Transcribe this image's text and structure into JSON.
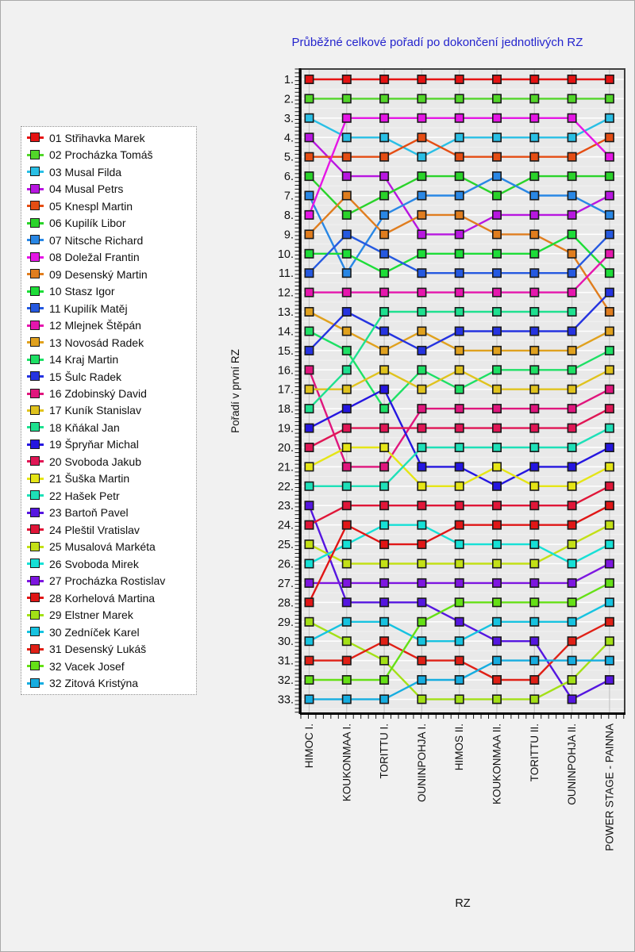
{
  "title": "Průběžné celkové pořadí po dokončení jednotlivých RZ",
  "chart_data": {
    "type": "line",
    "title": "Průběžné celkové pořadí po dokončení jednotlivých RZ",
    "xlabel": "RZ",
    "ylabel": "Pořadí v první RZ",
    "categories": [
      "HIMOC I.",
      "KOUKONMAA I.",
      "TORITTU I.",
      "OUNINPOHJA I.",
      "HIMOS II.",
      "KOUKONMAA II.",
      "TORITTU II.",
      "OUNINPOHJA II.",
      "POWER STAGE  - PAINNA"
    ],
    "y_tick_labels": [
      "1.",
      "2.",
      "3.",
      "4.",
      "5.",
      "6.",
      "7.",
      "8.",
      "9.",
      "10.",
      "11.",
      "12.",
      "13.",
      "14.",
      "15.",
      "16.",
      "17.",
      "18.",
      "19.",
      "20.",
      "21.",
      "22.",
      "23.",
      "24.",
      "25.",
      "26.",
      "27.",
      "28.",
      "29.",
      "30.",
      "31.",
      "32.",
      "33."
    ],
    "ylim": [
      1,
      33
    ],
    "y_inverted": true,
    "grid": true,
    "legend_position": "left",
    "title_color": "#2424cd",
    "series": [
      {
        "number": "01",
        "name": "Střihavka Marek",
        "color": "#e51313",
        "positions": [
          1,
          1,
          1,
          1,
          1,
          1,
          1,
          1,
          1
        ]
      },
      {
        "number": "02",
        "name": "Procházka Tomáš",
        "color": "#52d629",
        "positions": [
          2,
          2,
          2,
          2,
          2,
          2,
          2,
          2,
          2
        ]
      },
      {
        "number": "03",
        "name": "Musal Filda",
        "color": "#29bfe5",
        "positions": [
          3,
          4,
          4,
          5,
          4,
          4,
          4,
          4,
          3
        ]
      },
      {
        "number": "04",
        "name": "Musal Petrs",
        "color": "#b816e0",
        "positions": [
          4,
          6,
          6,
          9,
          9,
          8,
          8,
          8,
          7
        ]
      },
      {
        "number": "05",
        "name": "Knespl Martin",
        "color": "#e54d13",
        "positions": [
          5,
          5,
          5,
          4,
          5,
          5,
          5,
          5,
          4
        ]
      },
      {
        "number": "06",
        "name": "Kupilík Libor",
        "color": "#2ad32a",
        "positions": [
          6,
          8,
          7,
          6,
          6,
          7,
          6,
          6,
          6
        ]
      },
      {
        "number": "07",
        "name": "Nitsche Richard",
        "color": "#2987e5",
        "positions": [
          7,
          11,
          8,
          7,
          7,
          6,
          7,
          7,
          8
        ]
      },
      {
        "number": "08",
        "name": "Doležal Frantin",
        "color": "#e516e5",
        "positions": [
          8,
          3,
          3,
          3,
          3,
          3,
          3,
          3,
          5
        ]
      },
      {
        "number": "09",
        "name": "Desenský Martin",
        "color": "#e07d1e",
        "positions": [
          9,
          7,
          9,
          8,
          8,
          9,
          9,
          10,
          13
        ]
      },
      {
        "number": "10",
        "name": "Stasz Igor",
        "color": "#1ddd38",
        "positions": [
          10,
          10,
          11,
          10,
          10,
          10,
          10,
          9,
          11
        ]
      },
      {
        "number": "11",
        "name": "Kupilík Matěj",
        "color": "#2559e0",
        "positions": [
          11,
          9,
          10,
          11,
          11,
          11,
          11,
          11,
          9
        ]
      },
      {
        "number": "12",
        "name": "Mlejnek Štěpán",
        "color": "#e516ad",
        "positions": [
          12,
          12,
          12,
          12,
          12,
          12,
          12,
          12,
          10
        ]
      },
      {
        "number": "13",
        "name": "Novosád Radek",
        "color": "#e0a11e",
        "positions": [
          13,
          14,
          15,
          14,
          15,
          15,
          15,
          15,
          14
        ]
      },
      {
        "number": "14",
        "name": "Kraj Martin",
        "color": "#1ee065",
        "positions": [
          14,
          15,
          18,
          16,
          17,
          16,
          16,
          16,
          15
        ]
      },
      {
        "number": "15",
        "name": "Šulc Radek",
        "color": "#2533e0",
        "positions": [
          15,
          13,
          14,
          15,
          14,
          14,
          14,
          14,
          12
        ]
      },
      {
        "number": "16",
        "name": "Zdobinský David",
        "color": "#e0167d",
        "positions": [
          16,
          21,
          21,
          18,
          18,
          18,
          18,
          18,
          17
        ]
      },
      {
        "number": "17",
        "name": "Kuník Stanislav",
        "color": "#e0c31e",
        "positions": [
          17,
          17,
          16,
          17,
          16,
          17,
          17,
          17,
          16
        ]
      },
      {
        "number": "18",
        "name": "Kňákal Jan",
        "color": "#1ee08f",
        "positions": [
          18,
          16,
          13,
          13,
          13,
          13,
          13,
          13,
          null
        ]
      },
      {
        "number": "19",
        "name": "Špryňar Michal",
        "color": "#2516e0",
        "positions": [
          19,
          18,
          17,
          21,
          21,
          22,
          21,
          21,
          20
        ]
      },
      {
        "number": "20",
        "name": "Svoboda Jakub",
        "color": "#e01655",
        "positions": [
          20,
          19,
          19,
          19,
          19,
          19,
          19,
          19,
          18
        ]
      },
      {
        "number": "21",
        "name": "Šuška Martin",
        "color": "#e5e516",
        "positions": [
          21,
          20,
          20,
          22,
          22,
          21,
          22,
          22,
          21
        ]
      },
      {
        "number": "22",
        "name": "Hašek Petr",
        "color": "#1ee0b8",
        "positions": [
          22,
          22,
          22,
          20,
          20,
          20,
          20,
          20,
          19
        ]
      },
      {
        "number": "23",
        "name": "Bartoň Pavel",
        "color": "#5516e0",
        "positions": [
          23,
          28,
          28,
          28,
          29,
          30,
          30,
          33,
          32
        ]
      },
      {
        "number": "24",
        "name": "Pleštil Vratislav",
        "color": "#e01638",
        "positions": [
          24,
          23,
          23,
          23,
          23,
          23,
          23,
          23,
          22
        ]
      },
      {
        "number": "25",
        "name": "Musalová Markéta",
        "color": "#c3e016",
        "positions": [
          25,
          26,
          26,
          26,
          26,
          26,
          26,
          25,
          24
        ]
      },
      {
        "number": "26",
        "name": "Svoboda Mirek",
        "color": "#16e0d6",
        "positions": [
          26,
          25,
          24,
          24,
          25,
          25,
          25,
          26,
          25
        ]
      },
      {
        "number": "27",
        "name": "Procházka Rostislav",
        "color": "#7d16e0",
        "positions": [
          27,
          27,
          27,
          27,
          27,
          27,
          27,
          27,
          26
        ]
      },
      {
        "number": "28",
        "name": "Korhelová Martina",
        "color": "#e01616",
        "positions": [
          28,
          24,
          25,
          25,
          24,
          24,
          24,
          24,
          23
        ]
      },
      {
        "number": "29",
        "name": "Elstner Marek",
        "color": "#a3e016",
        "positions": [
          29,
          30,
          31,
          33,
          33,
          33,
          33,
          32,
          30
        ]
      },
      {
        "number": "30",
        "name": "Zedníček Karel",
        "color": "#16c3e0",
        "positions": [
          30,
          29,
          29,
          30,
          30,
          29,
          29,
          29,
          28
        ]
      },
      {
        "number": "31",
        "name": "Desenský Lukáš",
        "color": "#e02016",
        "positions": [
          31,
          31,
          30,
          31,
          31,
          32,
          32,
          30,
          29
        ]
      },
      {
        "number": "32",
        "name": "Vacek Josef",
        "color": "#65e016",
        "positions": [
          32,
          32,
          32,
          29,
          28,
          28,
          28,
          28,
          27
        ]
      },
      {
        "number": "32b",
        "display_number": "32",
        "name": "Zitová Kristýna",
        "color": "#16ade0",
        "positions": [
          33,
          33,
          33,
          32,
          32,
          31,
          31,
          31,
          31
        ]
      }
    ]
  }
}
